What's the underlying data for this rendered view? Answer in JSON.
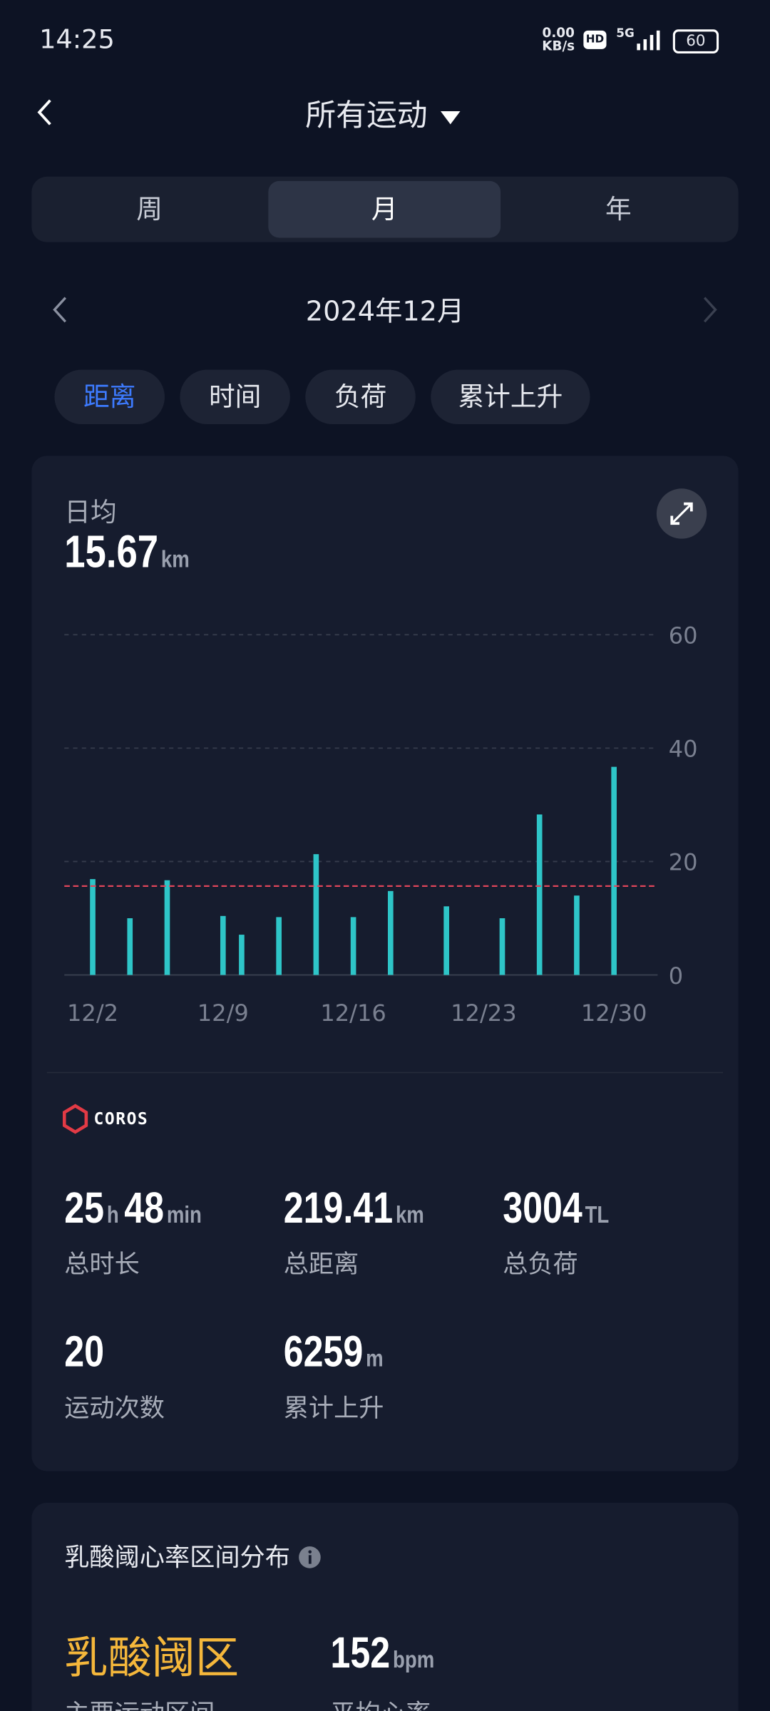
{
  "status_bar": {
    "time": "14:25",
    "net_speed": "0.00",
    "net_unit": "KB/s",
    "hd": "HD",
    "signal": "5G",
    "battery": "60"
  },
  "header": {
    "title": "所有运动"
  },
  "period_tabs": [
    "周",
    "月",
    "年"
  ],
  "month_nav": {
    "label": "2024年12月"
  },
  "metric_chips": [
    "距离",
    "时间",
    "负荷",
    "累计上升"
  ],
  "summary": {
    "label": "日均",
    "unit": "km"
  },
  "chart_data": {
    "type": "bar",
    "color": "#2ec5c8",
    "average_color": "#e0455a",
    "grid": true,
    "average": 15.67,
    "categories": [
      null,
      "12/2",
      null,
      null,
      null,
      null,
      null,
      null,
      "12/9",
      null,
      null,
      null,
      null,
      null,
      null,
      "12/16",
      null,
      null,
      null,
      null,
      null,
      null,
      "12/23",
      null,
      null,
      null,
      null,
      null,
      null,
      "12/30",
      null
    ],
    "values": [
      0,
      16.9,
      0,
      10,
      0,
      16.7,
      0,
      0,
      10.4,
      7.1,
      0,
      10.2,
      0,
      21.3,
      0,
      10.2,
      0,
      14.8,
      0,
      0,
      12.1,
      0,
      0,
      10,
      0,
      28.3,
      0,
      14,
      0,
      36.7,
      0
    ],
    "ylim": [
      0,
      60
    ],
    "yticks": [
      0,
      20,
      40,
      60
    ]
  },
  "brand": "COROS",
  "stats": [
    {
      "parts": [
        {
          "value": "25",
          "unit": "h"
        },
        {
          "value": "48",
          "unit": "min"
        }
      ],
      "label": "总时长"
    },
    {
      "parts": [
        {
          "value": "219.41",
          "unit": "km"
        }
      ],
      "label": "总距离"
    },
    {
      "parts": [
        {
          "value": "3004",
          "unit": "TL"
        }
      ],
      "label": "总负荷"
    },
    {
      "parts": [
        {
          "value": "20",
          "unit": null
        }
      ],
      "label": "运动次数"
    },
    {
      "parts": [
        {
          "value": "6259",
          "unit": "m"
        }
      ],
      "label": "累计上升"
    }
  ],
  "zone_card": {
    "title": "乳酸阈心率区间分布",
    "zone": "乳酸阈区",
    "zone_label": "主要运动区间",
    "hr_value": "152",
    "hr_unit": "bpm",
    "hr_label": "平均心率"
  }
}
